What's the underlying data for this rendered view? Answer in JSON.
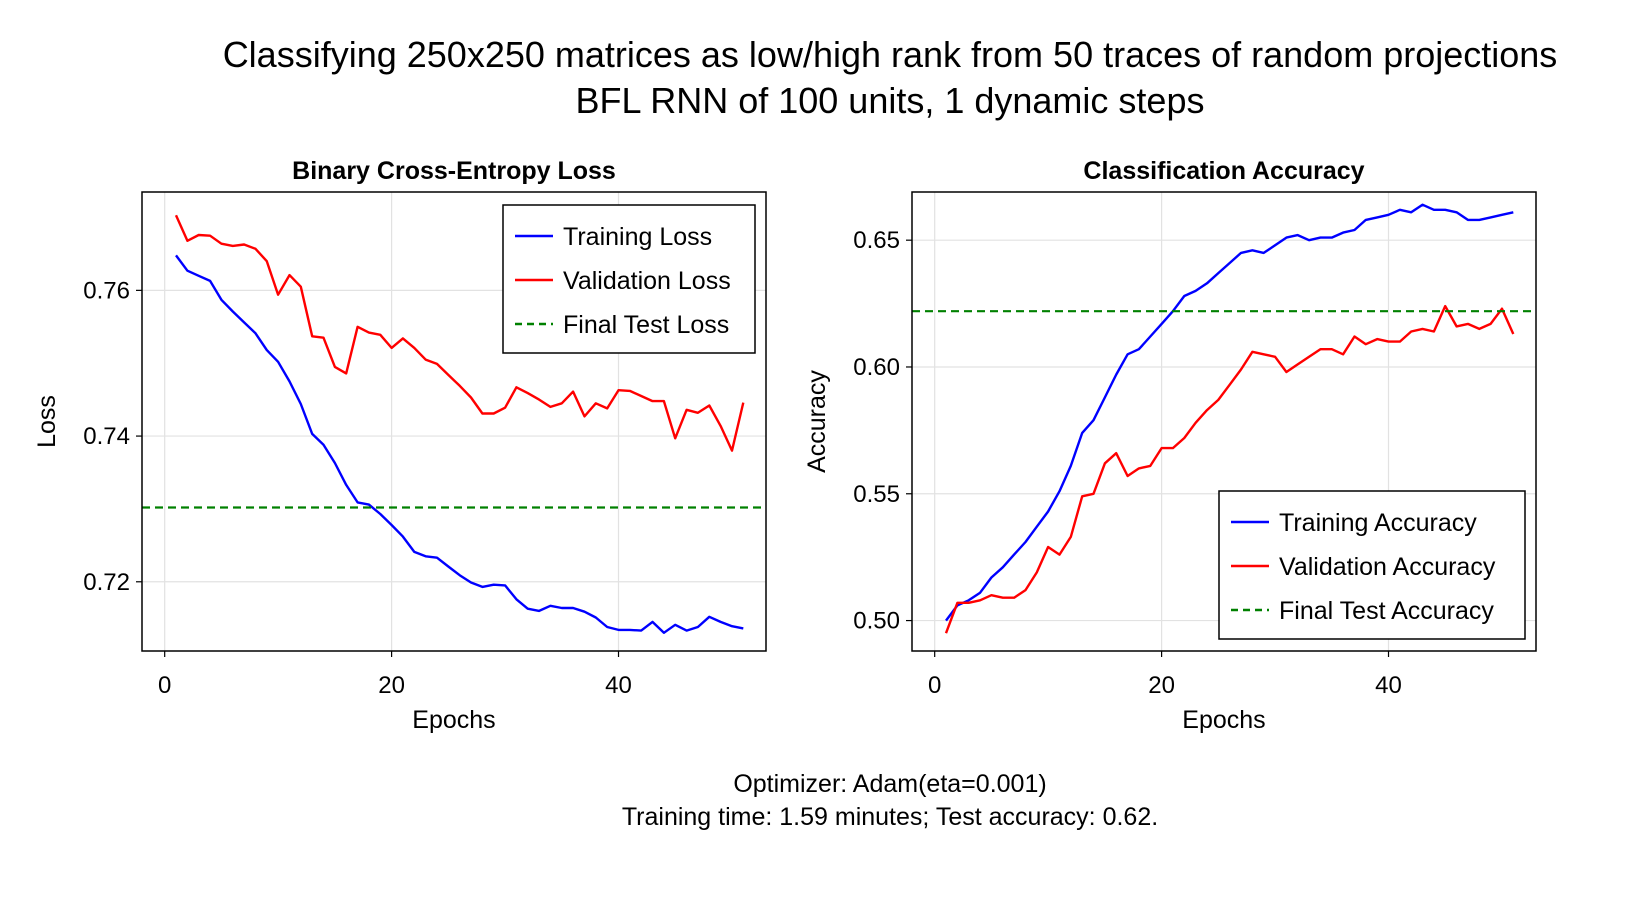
{
  "figure": {
    "title_line1": "Classifying 250x250 matrices as low/high rank from 50 traces of random projections",
    "title_line2": "BFL RNN of 100 units, 1 dynamic steps",
    "footer_line1": "Optimizer: Adam(eta=0.001)",
    "footer_line2": "Training time: 1.59 minutes; Test accuracy: 0.62."
  },
  "chart_data": [
    {
      "type": "line",
      "title": "Binary Cross-Entropy Loss",
      "xlabel": "Epochs",
      "ylabel": "Loss",
      "xlim": [
        -2,
        53
      ],
      "ylim": [
        0.7105,
        0.7735
      ],
      "xticks": [
        0,
        20,
        40
      ],
      "yticks": [
        0.72,
        0.74,
        0.76
      ],
      "ytick_labels": [
        "0.72",
        "0.74",
        "0.76"
      ],
      "grid": true,
      "legend_position": "top-right",
      "series": [
        {
          "name": "Training Loss",
          "color": "#0000ff",
          "x": [
            1,
            2,
            3,
            4,
            5,
            6,
            7,
            8,
            9,
            10,
            11,
            12,
            13,
            14,
            15,
            16,
            17,
            18,
            19,
            20,
            21,
            22,
            23,
            24,
            25,
            26,
            27,
            28,
            29,
            30,
            31,
            32,
            33,
            34,
            35,
            36,
            37,
            38,
            39,
            40,
            41,
            42,
            43,
            44,
            45,
            46,
            47,
            48,
            49,
            50,
            51
          ],
          "y": [
            0.7648,
            0.7627,
            0.762,
            0.7613,
            0.7587,
            0.7571,
            0.7556,
            0.7541,
            0.7518,
            0.7502,
            0.7475,
            0.7444,
            0.7403,
            0.7388,
            0.7363,
            0.7333,
            0.7309,
            0.7306,
            0.7293,
            0.7278,
            0.7262,
            0.7241,
            0.7235,
            0.7233,
            0.7221,
            0.7209,
            0.7199,
            0.7193,
            0.7196,
            0.7195,
            0.7176,
            0.7163,
            0.716,
            0.7167,
            0.7164,
            0.7164,
            0.7159,
            0.7151,
            0.7138,
            0.7134,
            0.7134,
            0.7133,
            0.7145,
            0.713,
            0.7141,
            0.7133,
            0.7138,
            0.7152,
            0.7145,
            0.7139,
            0.7136
          ]
        },
        {
          "name": "Validation Loss",
          "color": "#ff0000",
          "x": [
            1,
            2,
            3,
            4,
            5,
            6,
            7,
            8,
            9,
            10,
            11,
            12,
            13,
            14,
            15,
            16,
            17,
            18,
            19,
            20,
            21,
            22,
            23,
            24,
            25,
            26,
            27,
            28,
            29,
            30,
            31,
            32,
            33,
            34,
            35,
            36,
            37,
            38,
            39,
            40,
            41,
            42,
            43,
            44,
            45,
            46,
            47,
            48,
            49,
            50,
            51
          ],
          "y": [
            0.7703,
            0.7668,
            0.7676,
            0.7675,
            0.7664,
            0.7661,
            0.7663,
            0.7657,
            0.764,
            0.7594,
            0.7621,
            0.7605,
            0.7537,
            0.7535,
            0.7495,
            0.7486,
            0.755,
            0.7542,
            0.7539,
            0.7521,
            0.7534,
            0.7521,
            0.7505,
            0.7499,
            0.7484,
            0.7469,
            0.7453,
            0.7431,
            0.7431,
            0.7439,
            0.7467,
            0.7459,
            0.745,
            0.744,
            0.7445,
            0.7461,
            0.7427,
            0.7445,
            0.7438,
            0.7463,
            0.7462,
            0.7455,
            0.7448,
            0.7448,
            0.7397,
            0.7436,
            0.7432,
            0.7442,
            0.7414,
            0.738,
            0.7446
          ]
        },
        {
          "name": "Final Test Loss",
          "color": "#008000",
          "style": "dashed",
          "constant_y": 0.7302
        }
      ]
    },
    {
      "type": "line",
      "title": "Classification Accuracy",
      "xlabel": "Epochs",
      "ylabel": "Accuracy",
      "xlim": [
        -2,
        53
      ],
      "ylim": [
        0.488,
        0.669
      ],
      "xticks": [
        0,
        20,
        40
      ],
      "yticks": [
        0.5,
        0.55,
        0.6,
        0.65
      ],
      "ytick_labels": [
        "0.50",
        "0.55",
        "0.60",
        "0.65"
      ],
      "grid": true,
      "legend_position": "bottom-right",
      "series": [
        {
          "name": "Training Accuracy",
          "color": "#0000ff",
          "x": [
            1,
            2,
            3,
            4,
            5,
            6,
            7,
            8,
            9,
            10,
            11,
            12,
            13,
            14,
            15,
            16,
            17,
            18,
            19,
            20,
            21,
            22,
            23,
            24,
            25,
            26,
            27,
            28,
            29,
            30,
            31,
            32,
            33,
            34,
            35,
            36,
            37,
            38,
            39,
            40,
            41,
            42,
            43,
            44,
            45,
            46,
            47,
            48,
            49,
            50,
            51
          ],
          "y": [
            0.5,
            0.506,
            0.508,
            0.511,
            0.517,
            0.521,
            0.526,
            0.531,
            0.537,
            0.543,
            0.551,
            0.561,
            0.574,
            0.579,
            0.588,
            0.597,
            0.605,
            0.607,
            0.612,
            0.617,
            0.622,
            0.628,
            0.63,
            0.633,
            0.637,
            0.641,
            0.645,
            0.646,
            0.645,
            0.648,
            0.651,
            0.652,
            0.65,
            0.651,
            0.651,
            0.653,
            0.654,
            0.658,
            0.659,
            0.66,
            0.662,
            0.661,
            0.664,
            0.662,
            0.662,
            0.661,
            0.658,
            0.658,
            0.659,
            0.66,
            0.661
          ]
        },
        {
          "name": "Validation Accuracy",
          "color": "#ff0000",
          "x": [
            1,
            2,
            3,
            4,
            5,
            6,
            7,
            8,
            9,
            10,
            11,
            12,
            13,
            14,
            15,
            16,
            17,
            18,
            19,
            20,
            21,
            22,
            23,
            24,
            25,
            26,
            27,
            28,
            29,
            30,
            31,
            32,
            33,
            34,
            35,
            36,
            37,
            38,
            39,
            40,
            41,
            42,
            43,
            44,
            45,
            46,
            47,
            48,
            49,
            50,
            51
          ],
          "y": [
            0.495,
            0.507,
            0.507,
            0.508,
            0.51,
            0.509,
            0.509,
            0.512,
            0.519,
            0.529,
            0.526,
            0.533,
            0.549,
            0.55,
            0.562,
            0.566,
            0.557,
            0.56,
            0.561,
            0.568,
            0.568,
            0.572,
            0.578,
            0.583,
            0.587,
            0.593,
            0.599,
            0.606,
            0.605,
            0.604,
            0.598,
            0.601,
            0.604,
            0.607,
            0.607,
            0.605,
            0.612,
            0.609,
            0.611,
            0.61,
            0.61,
            0.614,
            0.615,
            0.614,
            0.624,
            0.616,
            0.617,
            0.615,
            0.617,
            0.623,
            0.613
          ]
        },
        {
          "name": "Final Test Accuracy",
          "color": "#008000",
          "style": "dashed",
          "constant_y": 0.622
        }
      ]
    }
  ]
}
